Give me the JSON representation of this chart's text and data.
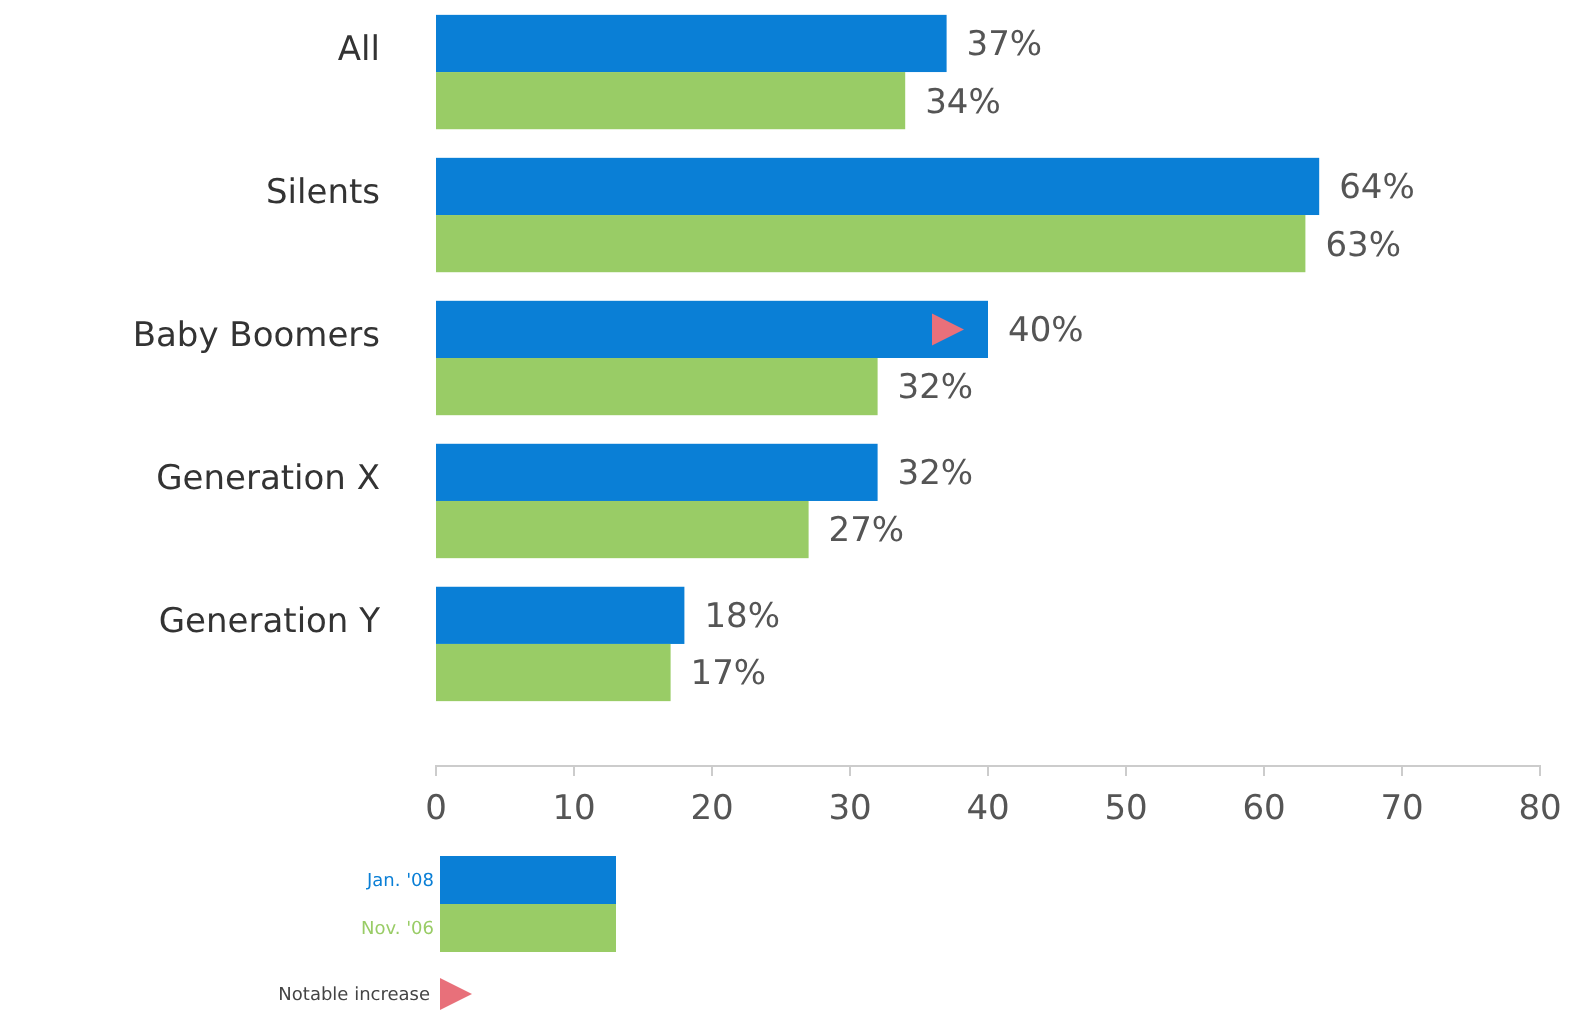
{
  "chart_data": {
    "type": "bar",
    "orientation": "horizontal",
    "categories": [
      "All",
      "Silents",
      "Baby Boomers",
      "Generation X",
      "Generation Y"
    ],
    "series": [
      {
        "name": "Jan. '08",
        "color": "#0a7fd6",
        "values": [
          37,
          64,
          40,
          32,
          18
        ],
        "value_labels": [
          "37%",
          "64%",
          "40%",
          "32%",
          "18%"
        ]
      },
      {
        "name": "Nov. '06",
        "color": "#99cc66",
        "values": [
          34,
          63,
          32,
          27,
          17
        ],
        "value_labels": [
          "34%",
          "63%",
          "32%",
          "27%",
          "17%"
        ]
      }
    ],
    "xlim": [
      0,
      80
    ],
    "xticks": [
      0,
      10,
      20,
      30,
      40,
      50,
      60,
      70,
      80
    ],
    "grid": false,
    "legend": "bottom left",
    "annotations": [
      "Notable increase"
    ]
  }
}
